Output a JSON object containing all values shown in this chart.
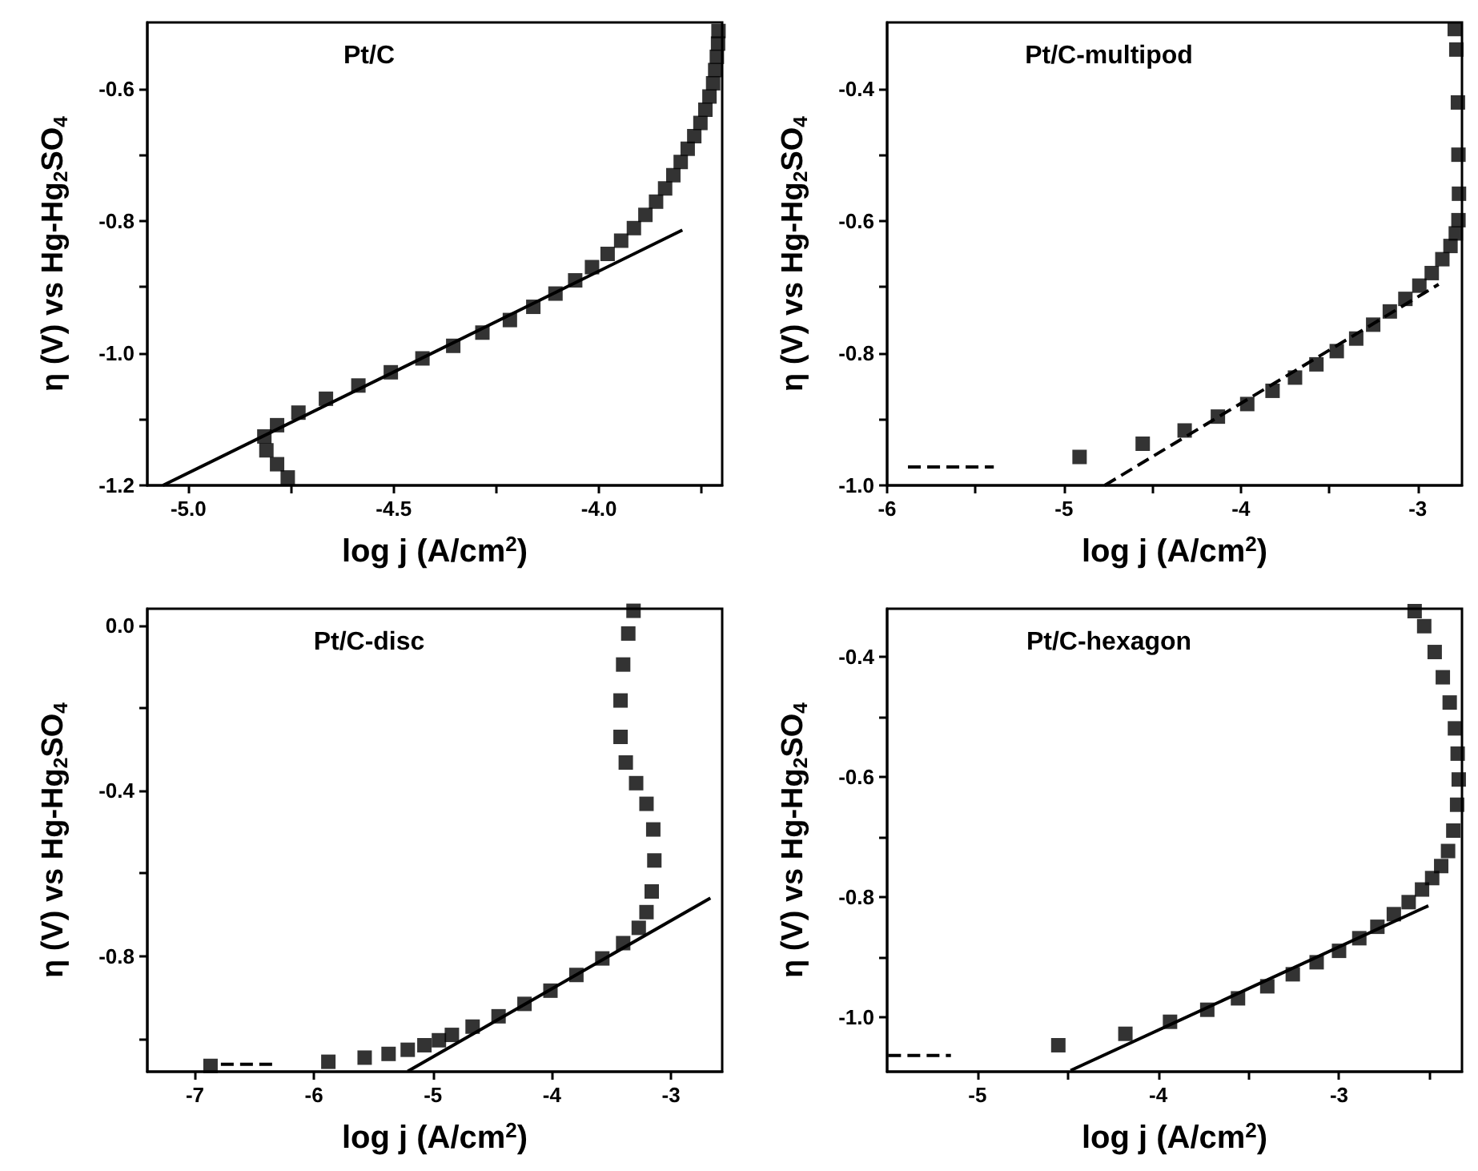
{
  "chart_data": [
    {
      "type": "scatter",
      "title": "Pt/C",
      "xlabel": "log j (A/cm$^{2}$)",
      "ylabel": "η (V) vs Hg-Hg$_{2}$SO$_{4}$",
      "grid": false,
      "xlim": [
        -5.1,
        -3.7
      ],
      "xticks": [
        {
          "value": -5,
          "label": "-5.0"
        },
        {
          "value": -4.75,
          "label": null
        },
        {
          "value": -4.5,
          "label": "-4.5"
        },
        {
          "value": -4.25,
          "label": null
        },
        {
          "value": -4,
          "label": "-4.0"
        },
        {
          "value": -3.75,
          "label": null
        }
      ],
      "ylim": [
        -1.2,
        -0.5
      ],
      "yticks": [
        {
          "value": -1.2,
          "label": "-1.2"
        },
        {
          "value": -1.1,
          "label": null
        },
        {
          "value": -1,
          "label": "-1.0"
        },
        {
          "value": -0.9,
          "label": null
        },
        {
          "value": -0.8,
          "label": "-0.8"
        },
        {
          "value": -0.7,
          "label": null
        },
        {
          "value": -0.6,
          "label": "-0.6"
        }
      ],
      "series": [
        {
          "marker": "square",
          "color": "#000000",
          "x": [
            -4.758,
            -4.784,
            -4.81,
            -4.815,
            -4.784,
            -4.732,
            -4.665,
            -4.586,
            -4.507,
            -4.43,
            -4.355,
            -4.284,
            -4.217,
            -4.16,
            -4.106,
            -4.058,
            -4.017,
            -3.979,
            -3.946,
            -3.915,
            -3.887,
            -3.861,
            -3.839,
            -3.819,
            -3.801,
            -3.784,
            -3.768,
            -3.753,
            -3.741,
            -3.731,
            -3.722,
            -3.717,
            -3.713,
            -3.71,
            -3.709
          ],
          "values": [
            -1.188,
            -1.168,
            -1.147,
            -1.126,
            -1.109,
            -1.09,
            -1.069,
            -1.049,
            -1.029,
            -1.008,
            -0.989,
            -0.969,
            -0.95,
            -0.93,
            -0.91,
            -0.89,
            -0.87,
            -0.85,
            -0.83,
            -0.811,
            -0.791,
            -0.771,
            -0.751,
            -0.731,
            -0.711,
            -0.691,
            -0.672,
            -0.652,
            -0.632,
            -0.612,
            -0.592,
            -0.572,
            -0.552,
            -0.532,
            -0.513
          ]
        },
        {
          "type": "line",
          "color": "#000000",
          "line_style": "solid",
          "x": [
            -5.062,
            -3.797
          ],
          "values": [
            -1.2,
            -0.814
          ]
        }
      ]
    },
    {
      "type": "scatter",
      "title": "Pt/C-multipod",
      "xlabel": "log j (A/cm$^{2}$)",
      "ylabel": "η (V) vs Hg-Hg$_{2}$SO$_{4}$",
      "grid": false,
      "xlim": [
        -6,
        -2.75
      ],
      "xticks": [
        -6,
        {
          "value": -5.5,
          "label": null
        },
        -5,
        {
          "value": -4.5,
          "label": null
        },
        -4,
        {
          "value": -3.5,
          "label": null
        },
        -3
      ],
      "ylim": [
        -1,
        -0.3
      ],
      "yticks": [
        {
          "value": -1,
          "label": "-1.0"
        },
        {
          "value": -0.9,
          "label": null
        },
        {
          "value": -0.8,
          "label": "-0.8"
        },
        {
          "value": -0.7,
          "label": null
        },
        {
          "value": -0.6,
          "label": "-0.6"
        },
        {
          "value": -0.5,
          "label": null
        },
        {
          "value": -0.4,
          "label": "-0.4"
        }
      ],
      "series": [
        {
          "marker": "square",
          "color": "#000000",
          "x": [
            -4.912,
            -4.555,
            -4.318,
            -4.13,
            -3.964,
            -3.821,
            -3.694,
            -3.573,
            -3.458,
            -3.348,
            -3.252,
            -3.158,
            -3.07,
            -2.991,
            -2.921,
            -2.861,
            -2.815,
            -2.785,
            -2.77,
            -2.767,
            -2.77,
            -2.773,
            -2.782,
            -2.791
          ],
          "values": [
            -0.957,
            -0.937,
            -0.917,
            -0.896,
            -0.877,
            -0.857,
            -0.837,
            -0.817,
            -0.797,
            -0.778,
            -0.757,
            -0.737,
            -0.718,
            -0.698,
            -0.679,
            -0.658,
            -0.638,
            -0.619,
            -0.599,
            -0.559,
            -0.5,
            -0.421,
            -0.341,
            -0.31
          ]
        },
        {
          "type": "line",
          "color": "#000000",
          "line_style": "dashed",
          "x": [
            -4.77,
            -2.882
          ],
          "values": [
            -1,
            -0.696
          ]
        },
        {
          "type": "line",
          "color": "#000000",
          "line_style": "dashed",
          "x": [
            -5.882,
            -5.397
          ],
          "values": [
            -0.972,
            -0.972
          ]
        }
      ]
    },
    {
      "type": "scatter",
      "title": "Pt/C-disc",
      "xlabel": "log j (A/cm$^{2}$)",
      "ylabel": "η (V) vs Hg-Hg$_{2}$SO$_{4}$",
      "grid": false,
      "xlim": [
        -7.4,
        -2.57
      ],
      "xticks": [
        -7,
        -6,
        -5,
        -4,
        -3
      ],
      "ylim": [
        -1.08,
        0.04
      ],
      "yticks": [
        {
          "value": -1,
          "label": null
        },
        {
          "value": -0.8,
          "label": "-0.8"
        },
        {
          "value": -0.6,
          "label": null
        },
        {
          "value": -0.4,
          "label": "-0.4"
        },
        {
          "value": -0.2,
          "label": null
        },
        {
          "value": 0,
          "label": "0.0"
        }
      ],
      "series": [
        {
          "marker": "square",
          "color": "#000000",
          "x": [
            -6.869,
            -5.879,
            -5.574,
            -5.373,
            -5.212,
            -5.072,
            -4.95,
            -4.841,
            -4.667,
            -4.449,
            -4.231,
            -4.013,
            -3.795,
            -3.577,
            -3.402,
            -3.271,
            -3.206,
            -3.162,
            -3.14,
            -3.149,
            -3.206,
            -3.293,
            -3.38,
            -3.424,
            -3.424,
            -3.402,
            -3.359,
            -3.315
          ],
          "values": [
            -1.066,
            -1.056,
            -1.046,
            -1.037,
            -1.027,
            -1.016,
            -1.004,
            -0.991,
            -0.971,
            -0.946,
            -0.916,
            -0.884,
            -0.846,
            -0.806,
            -0.769,
            -0.732,
            -0.694,
            -0.644,
            -0.569,
            -0.494,
            -0.432,
            -0.382,
            -0.332,
            -0.27,
            -0.182,
            -0.095,
            -0.02,
            0.035
          ]
        },
        {
          "type": "line",
          "color": "#000000",
          "line_style": "solid",
          "x": [
            -5.212,
            -2.669
          ],
          "values": [
            -1.079,
            -0.66
          ]
        },
        {
          "type": "line",
          "color": "#000000",
          "line_style": "dashed",
          "x": [
            -6.782,
            -6.324
          ],
          "values": [
            -1.062,
            -1.062
          ]
        }
      ]
    },
    {
      "type": "scatter",
      "title": "Pt/C-hexagon",
      "xlabel": "log j (A/cm$^{2}$)",
      "ylabel": "η (V) vs Hg-Hg$_{2}$SO$_{4}$",
      "grid": false,
      "xlim": [
        -5.5,
        -2.32
      ],
      "xticks": [
        -5,
        {
          "value": -4.5,
          "label": null
        },
        -4,
        {
          "value": -3.5,
          "label": null
        },
        -3,
        {
          "value": -2.5,
          "label": null
        }
      ],
      "ylim": [
        -1.09,
        -0.32
      ],
      "yticks": [
        {
          "value": -1,
          "label": "-1.0"
        },
        {
          "value": -0.9,
          "label": null
        },
        {
          "value": -0.8,
          "label": "-0.8"
        },
        {
          "value": -0.7,
          "label": null
        },
        {
          "value": -0.6,
          "label": "-0.6"
        },
        {
          "value": -0.5,
          "label": null
        },
        {
          "value": -0.4,
          "label": "-0.4"
        }
      ],
      "series": [
        {
          "marker": "square",
          "color": "#000000",
          "x": [
            -4.553,
            -4.182,
            -3.935,
            -3.729,
            -3.559,
            -3.397,
            -3.256,
            -3.124,
            -3,
            -2.888,
            -2.788,
            -2.697,
            -2.615,
            -2.541,
            -2.485,
            -2.435,
            -2.397,
            -2.368,
            -2.347,
            -2.338,
            -2.344,
            -2.359,
            -2.388,
            -2.426,
            -2.471,
            -2.529,
            -2.582
          ],
          "values": [
            -1.046,
            -1.027,
            -1.007,
            -0.987,
            -0.968,
            -0.948,
            -0.928,
            -0.908,
            -0.889,
            -0.868,
            -0.849,
            -0.828,
            -0.808,
            -0.787,
            -0.768,
            -0.748,
            -0.723,
            -0.689,
            -0.646,
            -0.604,
            -0.561,
            -0.519,
            -0.476,
            -0.434,
            -0.392,
            -0.349,
            -0.324
          ]
        },
        {
          "type": "line",
          "color": "#000000",
          "line_style": "solid",
          "x": [
            -4.485,
            -2.506
          ],
          "values": [
            -1.088,
            -0.814
          ]
        },
        {
          "type": "line",
          "color": "#000000",
          "line_style": "dashed",
          "x": [
            -5.494,
            -5.147
          ],
          "values": [
            -1.063,
            -1.063
          ]
        }
      ]
    }
  ]
}
